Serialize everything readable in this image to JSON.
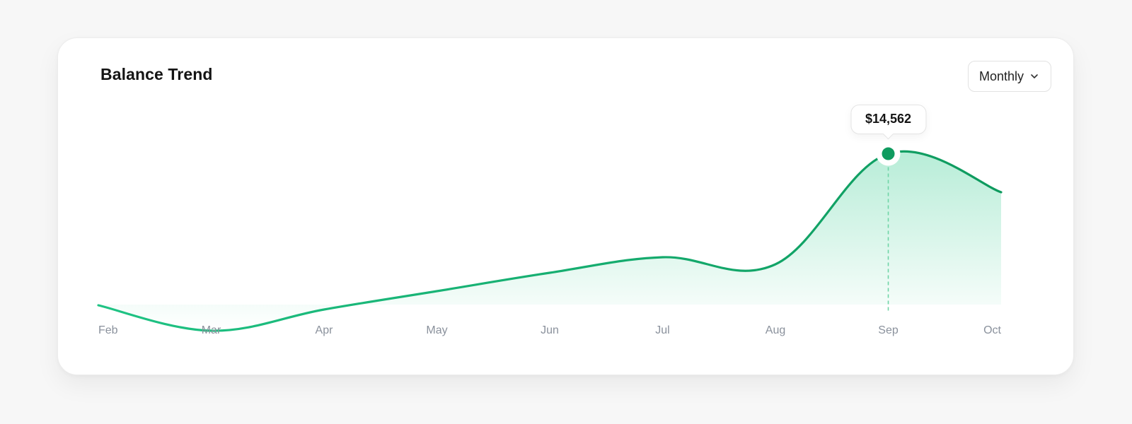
{
  "card": {
    "title": "Balance Trend"
  },
  "period_select": {
    "label": "Monthly",
    "icon": "chevron-down-icon"
  },
  "tooltip": {
    "value_label": "$14,562"
  },
  "colors": {
    "line_start": "#1fc384",
    "line_end": "#0e9a5e",
    "area": "#2cc98a",
    "marker": "#0f9b5f",
    "guide": "#6fd4a6"
  },
  "chart_data": {
    "type": "area",
    "categories": [
      "Feb",
      "Mar",
      "Apr",
      "May",
      "Jun",
      "Jul",
      "Aug",
      "Sep",
      "Oct"
    ],
    "values": [
      9200,
      8300,
      9050,
      9700,
      10350,
      10900,
      10650,
      14562,
      13200
    ],
    "ylim": [
      7000,
      17000
    ],
    "highlight_index": 7,
    "grid": false,
    "title": "Balance Trend",
    "xlabel": "",
    "ylabel": ""
  }
}
